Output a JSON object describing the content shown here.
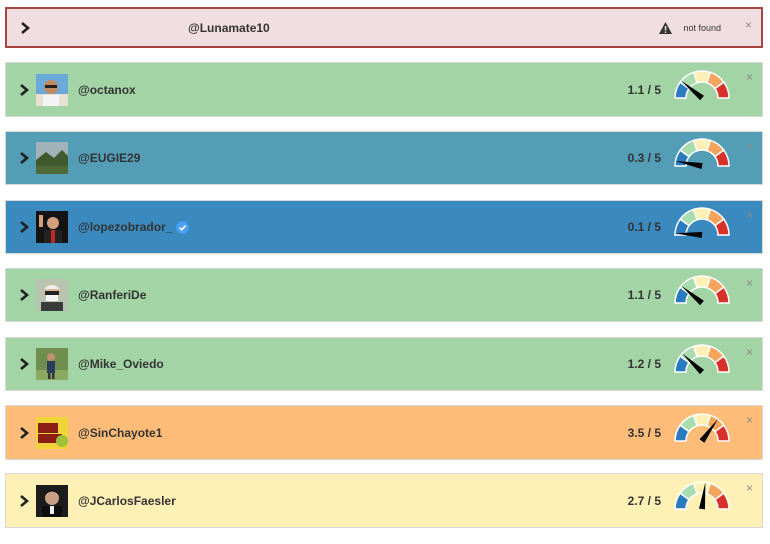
{
  "error_card": {
    "handle": "@Lunamate10",
    "status": "not found",
    "bg": "#f1dee1",
    "border": "#a94444"
  },
  "accounts": [
    {
      "handle": "@octanox",
      "score_text": "1.1 / 5",
      "score": 1.1,
      "verified": false,
      "bg": "#a2d4a6"
    },
    {
      "handle": "@EUGIE29",
      "score_text": "0.3 / 5",
      "score": 0.3,
      "verified": false,
      "bg": "#539db6"
    },
    {
      "handle": "@lopezobrador_",
      "score_text": "0.1 / 5",
      "score": 0.1,
      "verified": true,
      "bg": "#3b8abf"
    },
    {
      "handle": "@RanferiDe",
      "score_text": "1.1 / 5",
      "score": 1.1,
      "verified": false,
      "bg": "#a2d4a6"
    },
    {
      "handle": "@Mike_Oviedo",
      "score_text": "1.2 / 5",
      "score": 1.2,
      "verified": false,
      "bg": "#a2d4a6"
    },
    {
      "handle": "@SinChayote1",
      "score_text": "3.5 / 5",
      "score": 3.5,
      "verified": false,
      "bg": "#fdbd78"
    },
    {
      "handle": "@JCarlosFaesler",
      "score_text": "2.7 / 5",
      "score": 2.7,
      "verified": false,
      "bg": "#fff1b6"
    }
  ],
  "gauge_colors": [
    "#2b7bbf",
    "#a9dcae",
    "#fff1b6",
    "#f5a55b",
    "#d8312a"
  ],
  "icons": {
    "expand": "chevron-right-icon",
    "close": "close-icon",
    "warning": "warning-icon",
    "verified": "verified-badge-icon"
  },
  "close_glyph": "×"
}
